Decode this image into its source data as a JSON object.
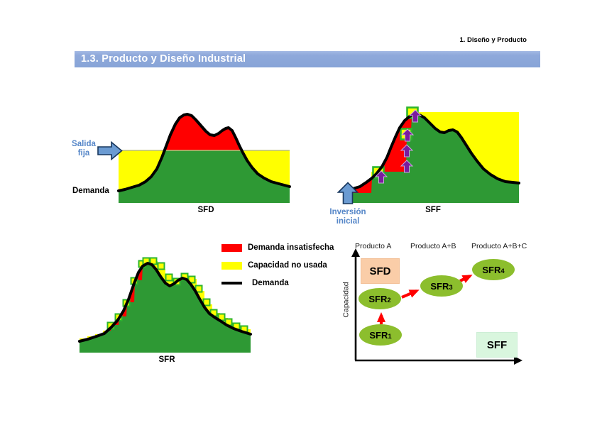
{
  "page": {
    "breadcrumb": "1. Diseño y Producto",
    "title": "1.3. Producto y Diseño Industrial"
  },
  "colors": {
    "title_bar": "#8CA8DA",
    "demand_fill_green": "#2E9934",
    "unused_capacity_yellow": "#FFFF00",
    "unmet_demand_red": "#FF0000",
    "demand_line": "#000000",
    "step_marker_border": "#2DB52D",
    "expansion_arrow_purple": "#7A1B9E",
    "blue_arrow_fill": "#6B9BD2",
    "blue_arrow_border": "#17365D",
    "blue_label_text": "#5586C8",
    "node_fill": "#8CBE2D",
    "sfd_box_fill": "#FACDA8",
    "sff_box_fill": "#D9F6DE",
    "red_arrow": "#FF0000"
  },
  "legend": {
    "items": [
      {
        "label": "Demanda insatisfecha",
        "swatch": "#FF0000",
        "kind": "box"
      },
      {
        "label": "Capacidad no usada",
        "swatch": "#FFFF00",
        "kind": "box"
      },
      {
        "label": "Demanda",
        "swatch": "#000000",
        "kind": "line"
      }
    ]
  },
  "chart_data": [
    {
      "id": "sfd",
      "type": "area",
      "label": "SFD",
      "annotation": {
        "line1": "Salida",
        "line2": "fija"
      },
      "axis_label": "Demanda",
      "baseline": 286,
      "x_range": [
        167,
        408
      ],
      "capacity_steps": [
        [
          167,
          212
        ],
        [
          408,
          212
        ]
      ],
      "capacity_line_stroke": "#B9BD7A",
      "demand_curve": [
        [
          167,
          269
        ],
        [
          176,
          267
        ],
        [
          186,
          264
        ],
        [
          196,
          261
        ],
        [
          205,
          256
        ],
        [
          213,
          249
        ],
        [
          221,
          238
        ],
        [
          228,
          222
        ],
        [
          234,
          206
        ],
        [
          240,
          190
        ],
        [
          247,
          175
        ],
        [
          253,
          166
        ],
        [
          259,
          162
        ],
        [
          264,
          161
        ],
        [
          270,
          163
        ],
        [
          276,
          169
        ],
        [
          283,
          177
        ],
        [
          290,
          185
        ],
        [
          296,
          190
        ],
        [
          302,
          191
        ],
        [
          308,
          188
        ],
        [
          313,
          184
        ],
        [
          318,
          181
        ],
        [
          322,
          180
        ],
        [
          327,
          184
        ],
        [
          332,
          194
        ],
        [
          337,
          205
        ],
        [
          342,
          215
        ],
        [
          348,
          226
        ],
        [
          355,
          236
        ],
        [
          363,
          245
        ],
        [
          372,
          251
        ],
        [
          382,
          256
        ],
        [
          393,
          259
        ],
        [
          408,
          263
        ]
      ],
      "squares": [],
      "square_size": 0,
      "expansion_arrows": []
    },
    {
      "id": "sff",
      "type": "area",
      "label": "SFF",
      "annotation": {
        "line1": "Inversión",
        "line2": "inicial"
      },
      "axis_label": "",
      "baseline": 286,
      "x_range": [
        487,
        731
      ],
      "capacity_steps": [
        [
          487,
          272
        ],
        [
          523,
          272
        ],
        [
          523,
          242
        ],
        [
          572,
          242
        ],
        [
          572,
          185
        ],
        [
          579,
          185
        ],
        [
          579,
          158
        ],
        [
          731,
          158
        ]
      ],
      "capacity_line_stroke": "",
      "demand_curve": [
        [
          487,
          269
        ],
        [
          497,
          266
        ],
        [
          507,
          263
        ],
        [
          516,
          257
        ],
        [
          524,
          251
        ],
        [
          531,
          244
        ],
        [
          538,
          235
        ],
        [
          545,
          222
        ],
        [
          551,
          207
        ],
        [
          557,
          193
        ],
        [
          563,
          180
        ],
        [
          570,
          170
        ],
        [
          577,
          164
        ],
        [
          584,
          161
        ],
        [
          591,
          162
        ],
        [
          598,
          166
        ],
        [
          606,
          174
        ],
        [
          613,
          181
        ],
        [
          620,
          186
        ],
        [
          626,
          187
        ],
        [
          632,
          184
        ],
        [
          638,
          183
        ],
        [
          644,
          186
        ],
        [
          650,
          194
        ],
        [
          657,
          205
        ],
        [
          664,
          216
        ],
        [
          672,
          227
        ],
        [
          681,
          238
        ],
        [
          691,
          246
        ],
        [
          701,
          252
        ],
        [
          712,
          256
        ],
        [
          722,
          257
        ],
        [
          731,
          258
        ]
      ],
      "squares": [
        [
          533,
          243
        ],
        [
          572,
          189
        ],
        [
          581,
          159
        ]
      ],
      "square_size": 15,
      "expansion_arrows": [
        [
          537,
          250
        ],
        [
          573,
          235
        ],
        [
          573,
          213
        ],
        [
          574,
          191
        ],
        [
          585,
          164
        ]
      ]
    },
    {
      "id": "sfr",
      "type": "area",
      "label": "SFR",
      "annotation": null,
      "axis_label": "",
      "baseline": 497,
      "x_range": [
        112,
        353
      ],
      "capacity_steps": [
        [
          112,
          477
        ],
        [
          123,
          477
        ],
        [
          123,
          474
        ],
        [
          134,
          474
        ],
        [
          134,
          471
        ],
        [
          145,
          471
        ],
        [
          145,
          466
        ],
        [
          156,
          466
        ],
        [
          156,
          458
        ],
        [
          167,
          458
        ],
        [
          167,
          446
        ],
        [
          178,
          446
        ],
        [
          178,
          426
        ],
        [
          189,
          426
        ],
        [
          189,
          395
        ],
        [
          200,
          395
        ],
        [
          200,
          372
        ],
        [
          211,
          372
        ],
        [
          211,
          368
        ],
        [
          222,
          368
        ],
        [
          222,
          379
        ],
        [
          233,
          379
        ],
        [
          233,
          395
        ],
        [
          244,
          395
        ],
        [
          244,
          396
        ],
        [
          255,
          396
        ],
        [
          255,
          389
        ],
        [
          266,
          389
        ],
        [
          266,
          393
        ],
        [
          277,
          393
        ],
        [
          277,
          410
        ],
        [
          288,
          410
        ],
        [
          288,
          429
        ],
        [
          299,
          429
        ],
        [
          299,
          441
        ],
        [
          310,
          441
        ],
        [
          310,
          448
        ],
        [
          321,
          448
        ],
        [
          321,
          455
        ],
        [
          332,
          455
        ],
        [
          332,
          460
        ],
        [
          342,
          460
        ],
        [
          342,
          464
        ],
        [
          353,
          464
        ]
      ],
      "capacity_line_stroke": "",
      "demand_curve": [
        [
          112,
          481
        ],
        [
          124,
          478
        ],
        [
          136,
          474
        ],
        [
          147,
          470
        ],
        [
          157,
          461
        ],
        [
          166,
          451
        ],
        [
          174,
          438
        ],
        [
          181,
          422
        ],
        [
          188,
          402
        ],
        [
          195,
          384
        ],
        [
          201,
          375
        ],
        [
          208,
          371
        ],
        [
          214,
          373
        ],
        [
          220,
          380
        ],
        [
          227,
          391
        ],
        [
          233,
          399
        ],
        [
          239,
          403
        ],
        [
          245,
          400
        ],
        [
          251,
          395
        ],
        [
          257,
          392
        ],
        [
          263,
          394
        ],
        [
          269,
          401
        ],
        [
          275,
          410
        ],
        [
          281,
          421
        ],
        [
          288,
          433
        ],
        [
          295,
          442
        ],
        [
          302,
          447
        ],
        [
          310,
          452
        ],
        [
          319,
          458
        ],
        [
          329,
          463
        ],
        [
          340,
          467
        ],
        [
          353,
          471
        ]
      ],
      "squares": [
        [
          156,
          459
        ],
        [
          167,
          447
        ],
        [
          178,
          427
        ],
        [
          189,
          396
        ],
        [
          200,
          372
        ],
        [
          206,
          368
        ],
        [
          216,
          368
        ],
        [
          227,
          375
        ],
        [
          238,
          391
        ],
        [
          249,
          397
        ],
        [
          260,
          390
        ],
        [
          270,
          394
        ],
        [
          280,
          407
        ],
        [
          291,
          426
        ],
        [
          301,
          441
        ],
        [
          312,
          447
        ],
        [
          322,
          454
        ],
        [
          333,
          460
        ],
        [
          344,
          464
        ]
      ],
      "square_size": 9,
      "expansion_arrows": []
    }
  ],
  "matrix": {
    "y_axis_label": "Capacidad",
    "column_labels": [
      "Producto A",
      "Producto A+B",
      "Producto A+B+C"
    ],
    "boxes": [
      {
        "label": "SFD",
        "fill": "#FACDA8"
      },
      {
        "label": "SFF",
        "fill": "#D9F6DE"
      }
    ],
    "nodes": [
      {
        "label": "SFR",
        "sub": "1"
      },
      {
        "label": "SFR",
        "sub": "2"
      },
      {
        "label": "SFR",
        "sub": "3"
      },
      {
        "label": "SFR",
        "sub": "4"
      }
    ]
  }
}
